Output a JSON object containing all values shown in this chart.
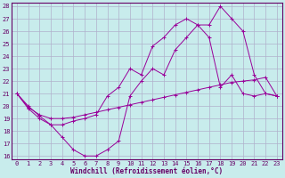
{
  "xlabel": "Windchill (Refroidissement éolien,°C)",
  "background_color": "#c8ecec",
  "grid_color": "#b0b0cc",
  "line_color": "#990099",
  "xlim": [
    -0.5,
    23.5
  ],
  "ylim": [
    15.7,
    28.3
  ],
  "yticks": [
    16,
    17,
    18,
    19,
    20,
    21,
    22,
    23,
    24,
    25,
    26,
    27,
    28
  ],
  "xticks": [
    0,
    1,
    2,
    3,
    4,
    5,
    6,
    7,
    8,
    9,
    10,
    11,
    12,
    13,
    14,
    15,
    16,
    17,
    18,
    19,
    20,
    21,
    22,
    23
  ],
  "line1_x": [
    0,
    1,
    2,
    3,
    4,
    5,
    6,
    7,
    8,
    9,
    10,
    11,
    12,
    13,
    14,
    15,
    16,
    17,
    18,
    19,
    20,
    21,
    22,
    23
  ],
  "line1_y": [
    21.0,
    19.8,
    19.0,
    18.5,
    17.5,
    16.5,
    16.0,
    16.0,
    16.5,
    17.2,
    20.8,
    22.0,
    23.0,
    22.5,
    24.5,
    25.5,
    26.5,
    26.5,
    28.0,
    27.0,
    26.0,
    22.5,
    21.0,
    20.8
  ],
  "line2_x": [
    0,
    1,
    2,
    3,
    4,
    5,
    6,
    7,
    8,
    9,
    10,
    11,
    12,
    13,
    14,
    15,
    16,
    17,
    18,
    19,
    20,
    21,
    22,
    23
  ],
  "line2_y": [
    21.0,
    19.9,
    19.3,
    19.0,
    19.0,
    19.1,
    19.3,
    19.5,
    19.7,
    19.9,
    20.1,
    20.3,
    20.5,
    20.7,
    20.9,
    21.1,
    21.3,
    21.5,
    21.7,
    21.9,
    22.0,
    22.1,
    22.3,
    20.8
  ],
  "line3_x": [
    0,
    1,
    2,
    3,
    4,
    5,
    6,
    7,
    8,
    9,
    10,
    11,
    12,
    13,
    14,
    15,
    16,
    17,
    18,
    19,
    20,
    21,
    22,
    23
  ],
  "line3_y": [
    21.0,
    20.0,
    19.2,
    18.5,
    18.5,
    18.8,
    19.0,
    19.3,
    20.8,
    21.5,
    23.0,
    22.5,
    24.8,
    25.5,
    26.5,
    27.0,
    26.5,
    25.5,
    21.5,
    22.5,
    21.0,
    20.8,
    21.0,
    20.8
  ]
}
